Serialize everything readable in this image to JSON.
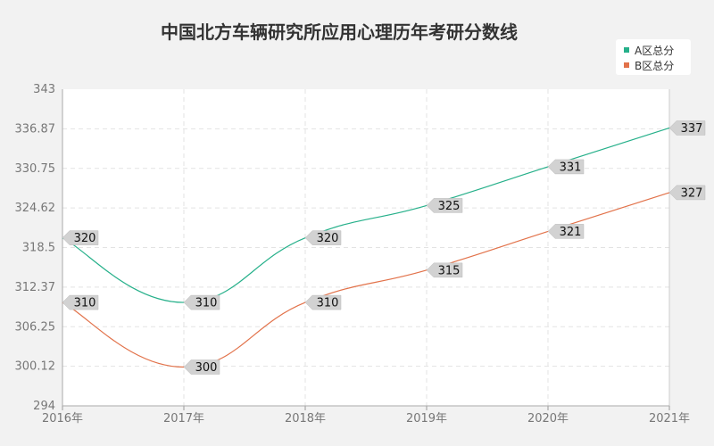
{
  "chart_data": {
    "type": "line",
    "title": "中国北方车辆研究所应用心理历年考研分数线",
    "categories": [
      "2016年",
      "2017年",
      "2018年",
      "2019年",
      "2020年",
      "2021年"
    ],
    "series": [
      {
        "name": "A区总分",
        "values": [
          320,
          310,
          320,
          325,
          331,
          337
        ],
        "color": "#26b08a"
      },
      {
        "name": "B区总分",
        "values": [
          310,
          300,
          310,
          315,
          321,
          327
        ],
        "color": "#e2724a"
      }
    ],
    "yticks": [
      "294",
      "300.12",
      "306.25",
      "312.37",
      "318.5",
      "324.62",
      "330.75",
      "336.87",
      "343"
    ],
    "ylim": [
      294,
      343
    ],
    "grid": true,
    "legend_position": "top-right"
  }
}
